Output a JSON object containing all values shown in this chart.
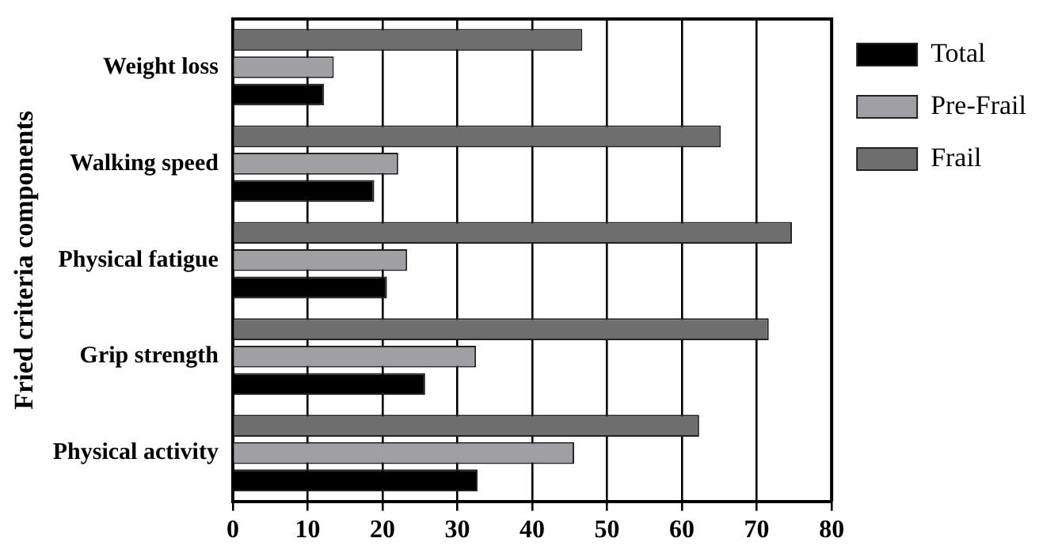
{
  "chart_data": {
    "type": "bar",
    "orientation": "horizontal",
    "ylabel": "Fried criteria components",
    "categories": [
      "Weight loss",
      "Walking speed",
      "Physical fatigue",
      "Grip strength",
      "Physical activity"
    ],
    "series": [
      {
        "name": "Total",
        "color": "#000000",
        "values": [
          12.2,
          18.9,
          20.6,
          25.7,
          32.7
        ]
      },
      {
        "name": "Pre-Frail",
        "color": "#a0a0a4",
        "values": [
          13.5,
          22.1,
          23.3,
          32.5,
          45.6
        ]
      },
      {
        "name": "Frail",
        "color": "#6e6e6e",
        "values": [
          46.7,
          65.2,
          74.7,
          71.6,
          62.3
        ]
      }
    ],
    "xlim": [
      0,
      80
    ],
    "xticks": [
      0,
      10,
      20,
      30,
      40,
      50,
      60,
      70,
      80
    ],
    "grid": "x",
    "legend": "right"
  }
}
